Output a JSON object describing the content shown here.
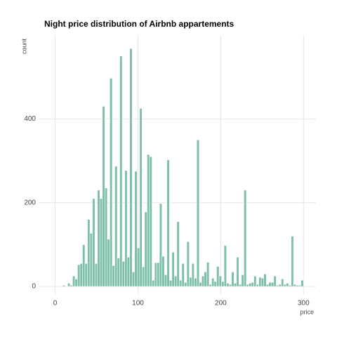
{
  "chart_data": {
    "type": "histogram",
    "title": "Night price distribution of Airbnb appartements",
    "xlabel": "price",
    "ylabel": "count",
    "bins": [
      9,
      12,
      15,
      18,
      21,
      24,
      27,
      30,
      33,
      36,
      39,
      42,
      45,
      48,
      51,
      54,
      57,
      60,
      63,
      66,
      69,
      72,
      75,
      78,
      81,
      84,
      87,
      90,
      93,
      96,
      99,
      102,
      105,
      108,
      111,
      114,
      117,
      120,
      123,
      126,
      129,
      132,
      135,
      138,
      141,
      144,
      147,
      150,
      153,
      156,
      159,
      162,
      165,
      168,
      171,
      174,
      177,
      180,
      183,
      186,
      189,
      192,
      195,
      198,
      201,
      204,
      207,
      210,
      213,
      216,
      219,
      222,
      225,
      228,
      231,
      234,
      237,
      240,
      243,
      246,
      249,
      252,
      255,
      258,
      261,
      264,
      267,
      270,
      273,
      276,
      279,
      282,
      285,
      288,
      291,
      294,
      297,
      300
    ],
    "counts": [
      3,
      0,
      8,
      3,
      25,
      18,
      52,
      55,
      100,
      55,
      160,
      127,
      210,
      55,
      230,
      210,
      430,
      235,
      113,
      497,
      50,
      287,
      68,
      550,
      60,
      277,
      70,
      568,
      35,
      275,
      92,
      425,
      47,
      178,
      315,
      310,
      15,
      57,
      57,
      198,
      72,
      28,
      302,
      15,
      82,
      25,
      155,
      15,
      55,
      10,
      107,
      22,
      55,
      20,
      350,
      10,
      25,
      35,
      58,
      5,
      20,
      12,
      48,
      25,
      12,
      98,
      8,
      5,
      35,
      8,
      70,
      5,
      28,
      230,
      5,
      8,
      10,
      25,
      5,
      22,
      20,
      30,
      5,
      10,
      10,
      25,
      3,
      5,
      18,
      5,
      8,
      3,
      120,
      5,
      3,
      3,
      15
    ],
    "color": "#7dbfa9",
    "xlim": [
      -20,
      315
    ],
    "ylim": [
      -20,
      600
    ],
    "xticks": [
      0,
      100,
      200,
      300
    ],
    "yticks": [
      0,
      200,
      400
    ],
    "grid": true
  }
}
